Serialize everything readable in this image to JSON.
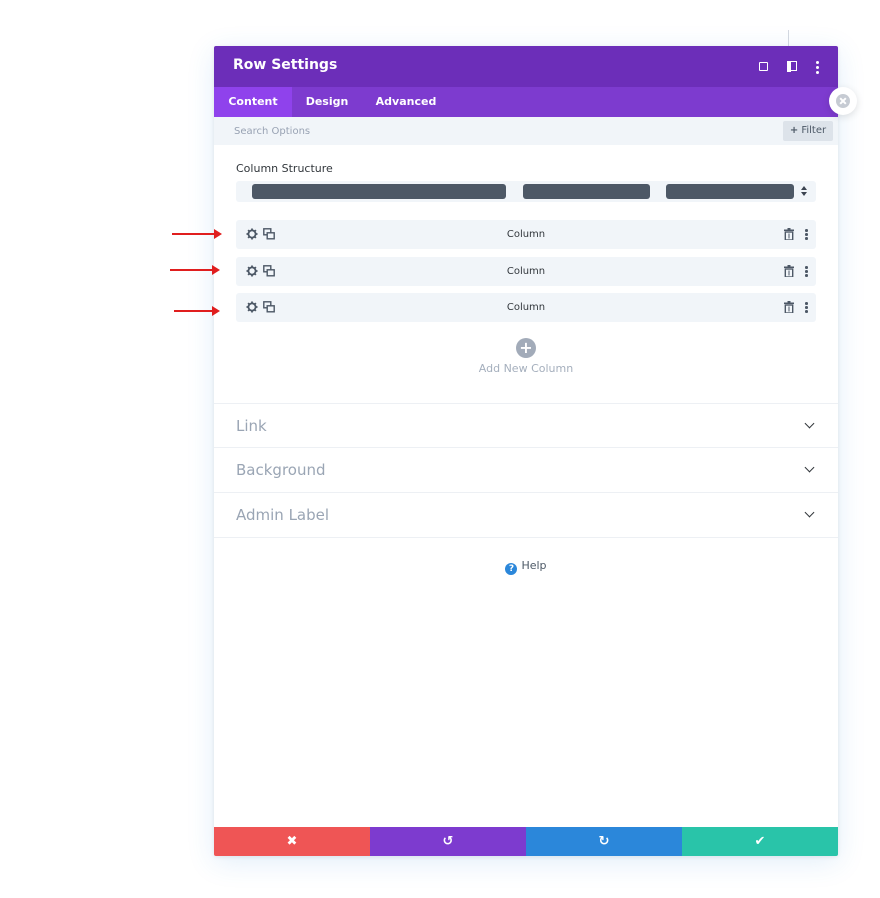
{
  "modal": {
    "title": "Row Settings",
    "tabs": [
      {
        "label": "Content"
      },
      {
        "label": "Design"
      },
      {
        "label": "Advanced"
      }
    ],
    "search": {
      "placeholder": "Search Options"
    },
    "filter_label": "Filter",
    "column_structure": {
      "label": "Column Structure"
    },
    "columns": [
      {
        "label": "Column"
      },
      {
        "label": "Column"
      },
      {
        "label": "Column"
      }
    ],
    "add_column_label": "Add New Column",
    "toggles": [
      {
        "label": "Link"
      },
      {
        "label": "Background"
      },
      {
        "label": "Admin Label"
      }
    ],
    "help_label": "Help"
  },
  "colors": {
    "header": "#6c2eb9",
    "tabs": "#7d3bcf",
    "active_tab": "#8f42ec",
    "discard": "#ef5555",
    "undo": "#7d3bcf",
    "redo": "#2b87da",
    "save": "#29c4a9",
    "annotation_arrow": "#e01e1e"
  },
  "icons": {
    "header": [
      "expand-icon",
      "snap-sidebar-icon",
      "more-options-icon"
    ],
    "column_row": [
      "gear-icon",
      "duplicate-icon",
      "trash-icon",
      "kebab-icon"
    ],
    "footer": [
      "close-icon",
      "undo-icon",
      "redo-icon",
      "check-icon"
    ]
  },
  "footer": {
    "discard_glyph": "✖",
    "undo_glyph": "↺",
    "redo_glyph": "↻",
    "save_glyph": "✔"
  }
}
